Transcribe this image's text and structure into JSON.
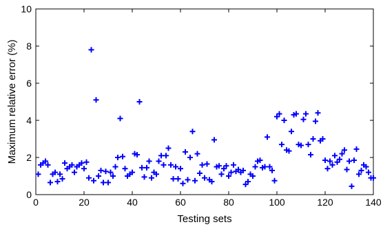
{
  "chart_data": {
    "type": "scatter",
    "title": "",
    "xlabel": "Testing sets",
    "ylabel": "Maximum relative error (%)",
    "xlim": [
      0,
      140
    ],
    "ylim": [
      0,
      10
    ],
    "xticks": [
      0,
      20,
      40,
      60,
      80,
      100,
      120,
      140
    ],
    "yticks": [
      0,
      2,
      4,
      6,
      8,
      10
    ],
    "grid": false,
    "marker": "+",
    "color": "#0000ff",
    "series": [
      {
        "x": [
          1,
          2,
          3,
          4,
          5,
          6,
          7,
          8,
          9,
          10,
          11,
          12,
          13,
          14,
          15,
          16,
          17,
          18,
          19,
          20,
          21,
          22,
          23,
          24,
          25,
          26,
          27,
          28,
          29,
          30,
          31,
          32,
          33,
          34,
          35,
          36,
          37,
          38,
          39,
          40,
          41,
          42,
          43,
          44,
          45,
          46,
          47,
          48,
          49,
          50,
          51,
          52,
          53,
          54,
          55,
          56,
          57,
          58,
          59,
          60,
          61,
          62,
          63,
          64,
          65,
          66,
          67,
          68,
          69,
          70,
          71,
          72,
          73,
          74,
          75,
          76,
          77,
          78,
          79,
          80,
          81,
          82,
          83,
          84,
          85,
          86,
          87,
          88,
          89,
          90,
          91,
          92,
          93,
          94,
          95,
          96,
          97,
          98,
          99,
          100,
          101,
          102,
          103,
          104,
          105,
          106,
          107,
          108,
          109,
          110,
          111,
          112,
          113,
          114,
          115,
          116,
          117,
          118,
          119,
          120,
          121,
          122,
          123,
          124,
          125,
          126,
          127,
          128,
          129,
          130,
          131,
          132,
          133,
          134,
          135,
          136,
          137,
          138,
          139,
          140
        ],
        "y": [
          1.1,
          1.6,
          1.7,
          1.8,
          1.6,
          0.65,
          1.1,
          1.2,
          0.7,
          1.1,
          0.85,
          1.7,
          1.4,
          1.5,
          1.6,
          1.2,
          1.5,
          1.6,
          1.7,
          1.4,
          1.75,
          0.9,
          7.8,
          0.75,
          5.1,
          1.0,
          1.3,
          0.65,
          1.25,
          0.65,
          1.2,
          1.0,
          1.5,
          2.0,
          4.1,
          2.05,
          1.4,
          1.0,
          1.1,
          1.2,
          2.2,
          2.15,
          5.0,
          1.45,
          0.95,
          1.45,
          1.8,
          0.9,
          1.2,
          1.1,
          1.8,
          2.1,
          1.6,
          2.1,
          2.5,
          1.6,
          0.85,
          1.5,
          0.85,
          1.4,
          0.6,
          2.3,
          0.8,
          2.0,
          3.4,
          0.75,
          2.2,
          1.15,
          1.6,
          0.9,
          1.65,
          0.8,
          0.7,
          2.95,
          1.5,
          1.55,
          1.1,
          1.4,
          1.55,
          1.0,
          1.2,
          1.6,
          1.25,
          1.35,
          1.2,
          1.3,
          0.55,
          0.7,
          1.1,
          1.0,
          1.5,
          1.8,
          1.85,
          1.45,
          1.5,
          3.1,
          1.5,
          1.3,
          0.75,
          4.2,
          4.35,
          2.7,
          4.0,
          2.4,
          2.35,
          3.4,
          4.3,
          4.35,
          2.7,
          2.65,
          4.05,
          4.35,
          2.7,
          2.15,
          3.0,
          3.95,
          4.4,
          2.9,
          3.0,
          1.85,
          1.4,
          1.8,
          1.6,
          2.1,
          1.75,
          1.9,
          2.2,
          2.4,
          1.35,
          1.8,
          0.45,
          1.85,
          2.45,
          1.1,
          1.3,
          1.6,
          1.5,
          1.2,
          0.9,
          0.9
        ]
      }
    ]
  }
}
